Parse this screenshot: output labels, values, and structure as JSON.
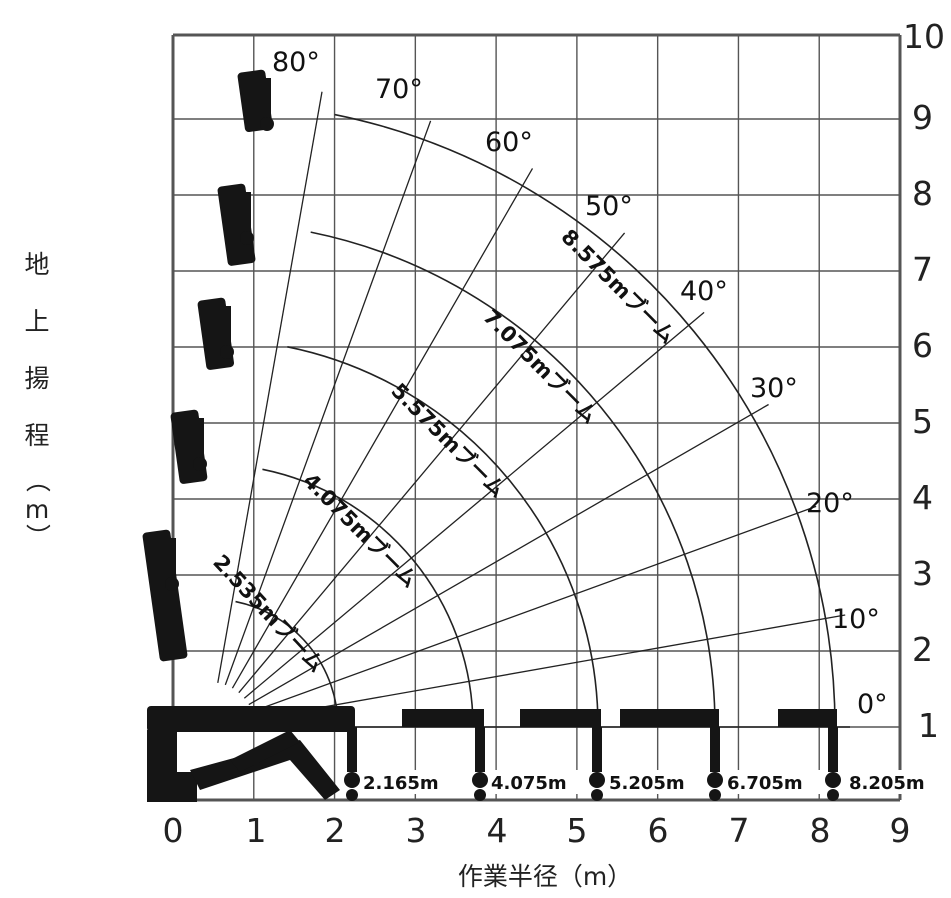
{
  "x_axis": {
    "title": "作業半径（m）",
    "ticks": [
      "0",
      "1",
      "2",
      "3",
      "4",
      "5",
      "6",
      "7",
      "8",
      "9"
    ]
  },
  "y_axis": {
    "title_chars": [
      "地",
      "上",
      "揚",
      "程",
      "（",
      "m",
      "）"
    ],
    "ticks": [
      "1",
      "2",
      "3",
      "4",
      "5",
      "6",
      "7",
      "8",
      "9",
      "10"
    ]
  },
  "angles": [
    "80°",
    "70°",
    "60°",
    "50°",
    "40°",
    "30°",
    "20°",
    "10°",
    "0°"
  ],
  "booms": [
    {
      "label": "2.535mブーム",
      "radius_label": "2.165m"
    },
    {
      "label": "4.075mブーム",
      "radius_label": "4.075m"
    },
    {
      "label": "5.575mブーム",
      "radius_label": "5.205m"
    },
    {
      "label": "7.075mブーム",
      "radius_label": "6.705m"
    },
    {
      "label": "8.575mブーム",
      "radius_label": "8.205m"
    }
  ],
  "colors": {
    "line": "#222222",
    "grid": "#555555",
    "crane": "#151515"
  }
}
